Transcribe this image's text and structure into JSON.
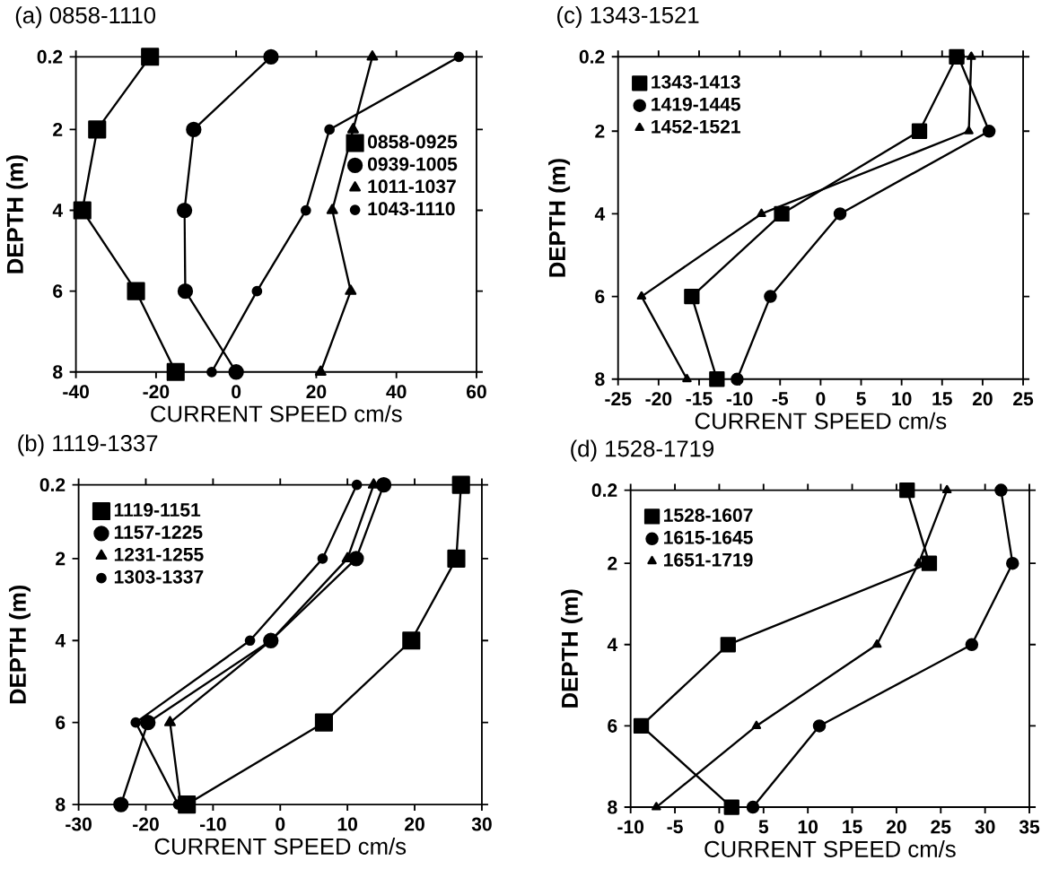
{
  "chart_data": [
    {
      "type": "line",
      "title": "(a) 0858-1110",
      "xlabel": "CURRENT SPEED cm/s",
      "ylabel": "DEPTH (m)",
      "xlim": [
        -40,
        60
      ],
      "xticks": [
        -40,
        -20,
        0,
        20,
        40,
        60
      ],
      "ylim": [
        8,
        0.2
      ],
      "yticks": [
        0.2,
        2,
        4,
        6,
        8
      ],
      "legend": "right",
      "series": [
        {
          "name": "0858-0925",
          "color": "#000000",
          "marker": "square",
          "x": [
            -21.5,
            -34.7,
            -38.4,
            -25.0,
            -15.1
          ],
          "values": [
            0.2,
            2,
            4,
            6,
            8
          ]
        },
        {
          "name": "0939-1005",
          "color": "#000000",
          "marker": "circle",
          "x": [
            8.7,
            -10.6,
            -12.9,
            -12.7,
            0
          ],
          "values": [
            0.2,
            2,
            4,
            6,
            8
          ]
        },
        {
          "name": "1011-1037",
          "color": "#000000",
          "marker": "triangle",
          "x": [
            34.0,
            29.2,
            24.0,
            28.6,
            21.1
          ],
          "values": [
            0.2,
            2,
            4,
            6,
            8
          ]
        },
        {
          "name": "1043-1110",
          "color": "#000000",
          "marker": "circle",
          "x": [
            55.6,
            23.3,
            17.4,
            5.2,
            -6.1
          ],
          "values": [
            0.2,
            2,
            4,
            6,
            8
          ]
        }
      ]
    },
    {
      "type": "line",
      "title": "(c) 1343-1521",
      "xlabel": "CURRENT SPEED cm/s",
      "ylabel": "DEPTH (m)",
      "xlim": [
        -25,
        25
      ],
      "xticks": [
        -25,
        -20,
        -15,
        -10,
        -5,
        0,
        5,
        10,
        15,
        20,
        25
      ],
      "ylim": [
        8,
        0.2
      ],
      "yticks": [
        0.2,
        2,
        4,
        6,
        8
      ],
      "legend": "top left",
      "series": [
        {
          "name": "1343-1413",
          "color": "#000000",
          "marker": "square",
          "x": [
            16.8,
            12.2,
            -4.8,
            -15.9,
            -12.8
          ],
          "values": [
            0.2,
            2,
            4,
            6,
            8
          ]
        },
        {
          "name": "1419-1445",
          "color": "#000000",
          "marker": "circle",
          "x": [
            17.0,
            20.8,
            2.4,
            -6.2,
            -10.3
          ],
          "values": [
            0.2,
            2,
            4,
            6,
            8
          ]
        },
        {
          "name": "1452-1521",
          "color": "#000000",
          "marker": "triangle",
          "x": [
            18.6,
            18.3,
            -7.3,
            -22.1,
            -16.5
          ],
          "values": [
            0.2,
            2,
            4,
            6,
            8
          ]
        }
      ]
    },
    {
      "type": "line",
      "title": "(b) 1119-1337",
      "xlabel": "CURRENT SPEED cm/s",
      "ylabel": "DEPTH (m)",
      "xlim": [
        -30,
        30
      ],
      "xticks": [
        -30,
        -20,
        -10,
        0,
        10,
        20,
        30
      ],
      "ylim": [
        8,
        0.2
      ],
      "yticks": [
        0.2,
        2,
        4,
        6,
        8
      ],
      "legend": "top left",
      "series": [
        {
          "name": "1119-1151",
          "color": "#000000",
          "marker": "square",
          "x": [
            26.9,
            26.2,
            19.5,
            6.5,
            -13.9
          ],
          "values": [
            0.2,
            2,
            4,
            6,
            8
          ]
        },
        {
          "name": "1157-1225",
          "color": "#000000",
          "marker": "circle",
          "x": [
            15.4,
            11.3,
            -1.4,
            -19.7,
            -23.7
          ],
          "values": [
            0.2,
            2,
            4,
            6,
            8
          ]
        },
        {
          "name": "1231-1255",
          "color": "#000000",
          "marker": "triangle",
          "x": [
            13.9,
            10.0,
            -1.4,
            -16.4,
            -14.8
          ],
          "values": [
            0.2,
            2,
            4,
            6,
            8
          ]
        },
        {
          "name": "1303-1337",
          "color": "#000000",
          "marker": "circle",
          "x": [
            11.4,
            6.3,
            -4.5,
            -21.5,
            -15.2
          ],
          "values": [
            0.2,
            2,
            4,
            6,
            8
          ]
        }
      ]
    },
    {
      "type": "line",
      "title": "(d) 1528-1719",
      "xlabel": "CURRENT SPEED cm/s",
      "ylabel": "DEPTH (m)",
      "xlim": [
        -10,
        35
      ],
      "xticks": [
        -10,
        -5,
        0,
        5,
        10,
        15,
        20,
        25,
        30,
        35
      ],
      "ylim": [
        8,
        0.2
      ],
      "yticks": [
        0.2,
        2,
        4,
        6,
        8
      ],
      "legend": "top left",
      "series": [
        {
          "name": "1528-1607",
          "color": "#000000",
          "marker": "square",
          "x": [
            21.2,
            23.7,
            1.0,
            -8.8,
            1.4
          ],
          "values": [
            0.2,
            2,
            4,
            6,
            8
          ]
        },
        {
          "name": "1615-1645",
          "color": "#000000",
          "marker": "circle",
          "x": [
            31.8,
            33.1,
            28.5,
            11.3,
            3.8
          ],
          "values": [
            0.2,
            2,
            4,
            6,
            8
          ]
        },
        {
          "name": "1651-1719",
          "color": "#000000",
          "marker": "triangle",
          "x": [
            25.7,
            22.5,
            17.8,
            4.2,
            -7.1
          ],
          "values": [
            0.2,
            2,
            4,
            6,
            8
          ]
        }
      ]
    }
  ]
}
